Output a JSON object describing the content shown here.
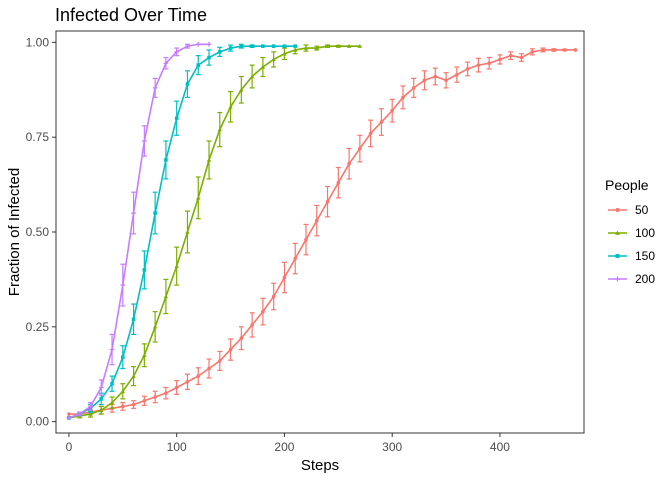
{
  "chart_data": {
    "type": "line",
    "title": "Infected Over Time",
    "xlabel": "Steps",
    "ylabel": "Fraction of Infected",
    "xlim": [
      -12,
      478
    ],
    "ylim": [
      -0.03,
      1.03
    ],
    "xticks": [
      0,
      100,
      200,
      300,
      400
    ],
    "yticks": [
      0.0,
      0.25,
      0.5,
      0.75,
      1.0
    ],
    "ytick_labels": [
      "0.00",
      "0.25",
      "0.50",
      "0.75",
      "1.00"
    ],
    "grid": false,
    "legend": {
      "title": "People",
      "placement": "right"
    },
    "series": [
      {
        "name": "50",
        "color": "#F8766D",
        "marker": "circle",
        "x": [
          0,
          10,
          20,
          30,
          40,
          50,
          60,
          70,
          80,
          90,
          100,
          110,
          120,
          130,
          140,
          150,
          160,
          170,
          180,
          190,
          200,
          210,
          220,
          230,
          240,
          250,
          260,
          270,
          280,
          290,
          300,
          310,
          320,
          330,
          340,
          350,
          360,
          370,
          380,
          390,
          400,
          410,
          420,
          430,
          440,
          450,
          460,
          470
        ],
        "y": [
          0.02,
          0.02,
          0.025,
          0.03,
          0.035,
          0.04,
          0.045,
          0.055,
          0.065,
          0.075,
          0.09,
          0.105,
          0.12,
          0.14,
          0.16,
          0.19,
          0.22,
          0.255,
          0.29,
          0.33,
          0.38,
          0.43,
          0.48,
          0.53,
          0.58,
          0.63,
          0.68,
          0.72,
          0.76,
          0.79,
          0.82,
          0.855,
          0.88,
          0.9,
          0.91,
          0.9,
          0.915,
          0.93,
          0.94,
          0.945,
          0.955,
          0.965,
          0.96,
          0.975,
          0.98,
          0.98,
          0.98,
          0.98
        ],
        "err": [
          0,
          0.005,
          0.005,
          0.01,
          0.01,
          0.01,
          0.01,
          0.012,
          0.015,
          0.015,
          0.018,
          0.02,
          0.022,
          0.025,
          0.025,
          0.028,
          0.03,
          0.032,
          0.035,
          0.035,
          0.04,
          0.04,
          0.04,
          0.04,
          0.04,
          0.04,
          0.04,
          0.035,
          0.035,
          0.035,
          0.03,
          0.03,
          0.025,
          0.025,
          0.022,
          0.02,
          0.02,
          0.018,
          0.018,
          0.015,
          0.012,
          0.01,
          0.01,
          0.008,
          0.005,
          0.003,
          0.002,
          0
        ]
      },
      {
        "name": "100",
        "color": "#7CAE00",
        "marker": "triangle",
        "x": [
          0,
          10,
          20,
          30,
          40,
          50,
          60,
          70,
          80,
          90,
          100,
          110,
          120,
          130,
          140,
          150,
          160,
          170,
          180,
          190,
          200,
          210,
          220,
          230,
          240,
          250,
          260,
          270
        ],
        "y": [
          0.01,
          0.015,
          0.02,
          0.03,
          0.05,
          0.08,
          0.12,
          0.175,
          0.25,
          0.33,
          0.41,
          0.5,
          0.59,
          0.69,
          0.77,
          0.83,
          0.875,
          0.91,
          0.935,
          0.955,
          0.97,
          0.98,
          0.985,
          0.985,
          0.99,
          0.99,
          0.99,
          0.99
        ],
        "err": [
          0,
          0.005,
          0.008,
          0.01,
          0.015,
          0.02,
          0.025,
          0.03,
          0.04,
          0.045,
          0.05,
          0.055,
          0.055,
          0.05,
          0.045,
          0.04,
          0.035,
          0.03,
          0.025,
          0.02,
          0.015,
          0.01,
          0.008,
          0.005,
          0.003,
          0.002,
          0,
          0
        ]
      },
      {
        "name": "150",
        "color": "#00BFC4",
        "marker": "square",
        "x": [
          0,
          10,
          20,
          30,
          40,
          50,
          60,
          70,
          80,
          90,
          100,
          110,
          120,
          130,
          140,
          150,
          160,
          170,
          180,
          190,
          200,
          210
        ],
        "y": [
          0.01,
          0.02,
          0.035,
          0.06,
          0.1,
          0.17,
          0.27,
          0.4,
          0.55,
          0.69,
          0.8,
          0.89,
          0.94,
          0.96,
          0.975,
          0.985,
          0.99,
          0.99,
          0.99,
          0.99,
          0.99,
          0.99
        ],
        "err": [
          0,
          0.005,
          0.01,
          0.015,
          0.02,
          0.03,
          0.04,
          0.05,
          0.055,
          0.05,
          0.045,
          0.035,
          0.025,
          0.02,
          0.012,
          0.008,
          0.005,
          0.003,
          0,
          0,
          0,
          0
        ]
      },
      {
        "name": "200",
        "color": "#C77CFF",
        "marker": "plus",
        "x": [
          0,
          10,
          20,
          30,
          40,
          50,
          60,
          70,
          80,
          90,
          100,
          110,
          120,
          130
        ],
        "y": [
          0.01,
          0.02,
          0.04,
          0.09,
          0.19,
          0.36,
          0.55,
          0.74,
          0.88,
          0.945,
          0.975,
          0.99,
          0.995,
          0.995
        ],
        "err": [
          0,
          0.005,
          0.01,
          0.02,
          0.04,
          0.055,
          0.055,
          0.04,
          0.025,
          0.015,
          0.01,
          0.005,
          0,
          0
        ]
      }
    ]
  }
}
